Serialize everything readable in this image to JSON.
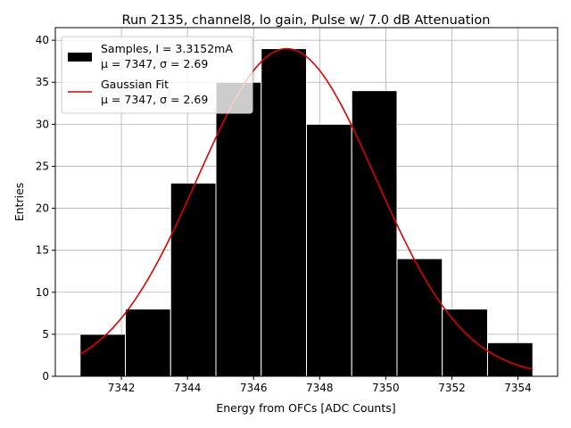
{
  "chart_data": {
    "type": "bar",
    "title": "Run 2135, channel8, lo gain, Pulse w/ 7.0 dB Attenuation",
    "xlabel": "Energy from OFCs [ADC Counts]",
    "ylabel": "Entries",
    "xlim": [
      7340.0,
      7355.2
    ],
    "ylim": [
      0,
      41.5
    ],
    "xticks": [
      7342,
      7344,
      7346,
      7348,
      7350,
      7352,
      7354
    ],
    "yticks": [
      0,
      5,
      10,
      15,
      20,
      25,
      30,
      35,
      40
    ],
    "grid": true,
    "legend_position": "top-left",
    "bins": {
      "edges": [
        7340.75,
        7342.12,
        7343.49,
        7344.86,
        7346.23,
        7347.6,
        7348.97,
        7350.34,
        7351.71,
        7353.08,
        7354.45
      ],
      "counts": [
        5,
        8,
        23,
        35,
        39,
        30,
        34,
        14,
        8,
        4
      ],
      "color": "#000000",
      "edge_color": "#ffffff"
    },
    "fit": {
      "mu": 7347,
      "sigma": 2.69,
      "amplitude": 39,
      "x_range": [
        7340.75,
        7354.45
      ],
      "color": "#e00000"
    },
    "legend": [
      {
        "key": "samples",
        "line1": "Samples, I = 3.3152mA",
        "line2": "μ = 7347, σ = 2.69"
      },
      {
        "key": "fit",
        "line1": "Gaussian Fit",
        "line2": "μ = 7347, σ = 2.69"
      }
    ]
  }
}
